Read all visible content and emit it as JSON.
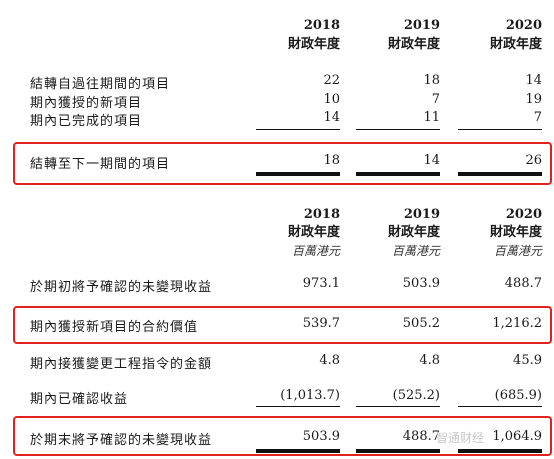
{
  "section1": {
    "headers": [
      {
        "year": "2018",
        "label": "財政年度"
      },
      {
        "year": "2019",
        "label": "財政年度"
      },
      {
        "year": "2020",
        "label": "財政年度"
      }
    ],
    "rows": [
      {
        "label": "結轉自過往期間的項目",
        "values": [
          "22",
          "18",
          "14"
        ]
      },
      {
        "label": "期內獲授的新項目",
        "values": [
          "10",
          "7",
          "19"
        ]
      },
      {
        "label": "期內已完成的項目",
        "values": [
          "14",
          "11",
          "7"
        ]
      }
    ],
    "total": {
      "label": "結轉至下一期間的項目",
      "values": [
        "18",
        "14",
        "26"
      ]
    }
  },
  "section2": {
    "headers": [
      {
        "year": "2018",
        "label": "財政年度",
        "unit": "百萬港元"
      },
      {
        "year": "2019",
        "label": "財政年度",
        "unit": "百萬港元"
      },
      {
        "year": "2020",
        "label": "財政年度",
        "unit": "百萬港元"
      }
    ],
    "rows": [
      {
        "label": "於期初將予確認的未變現收益",
        "values": [
          "973.1",
          "503.9",
          "488.7"
        ]
      },
      {
        "label": "期內獲授新項目的合約價值",
        "values": [
          "539.7",
          "505.2",
          "1,216.2"
        ]
      },
      {
        "label": "期內接獲變更工程指令的金額",
        "values": [
          "4.8",
          "4.8",
          "45.9"
        ]
      },
      {
        "label": "期內已確認收益",
        "values": [
          "(1,013.7)",
          "(525.2)",
          "(685.9)"
        ]
      }
    ],
    "total": {
      "label": "於期末將予確認的未變現收益",
      "values": [
        "503.9",
        "488.7",
        "1,064.9"
      ]
    }
  },
  "watermark": "智通财经"
}
